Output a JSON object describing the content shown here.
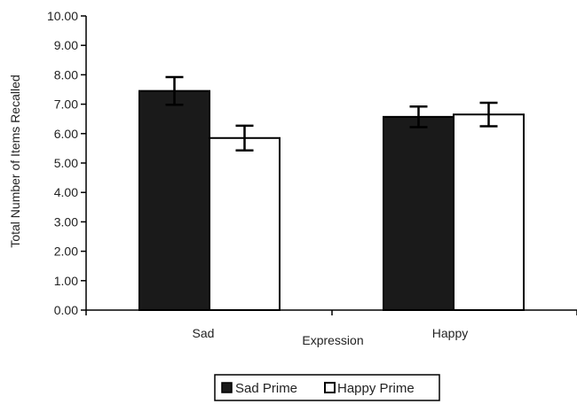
{
  "chart_data": {
    "type": "bar",
    "xlabel": "Expression",
    "ylabel": "Total Number of Items Recalled",
    "ylim": [
      0,
      10
    ],
    "yticks": [
      "0.00",
      "1.00",
      "2.00",
      "3.00",
      "4.00",
      "5.00",
      "6.00",
      "7.00",
      "8.00",
      "9.00",
      "10.00"
    ],
    "categories": [
      "Sad",
      "Happy"
    ],
    "series": [
      {
        "name": "Sad Prime",
        "color": "#1a1a1a",
        "values": [
          7.45,
          6.57
        ],
        "error": [
          0.47,
          0.35
        ]
      },
      {
        "name": "Happy Prime",
        "color": "#ffffff",
        "values": [
          5.85,
          6.65
        ],
        "error": [
          0.42,
          0.4
        ]
      }
    ],
    "grid": false,
    "legend": "bottom-center"
  }
}
